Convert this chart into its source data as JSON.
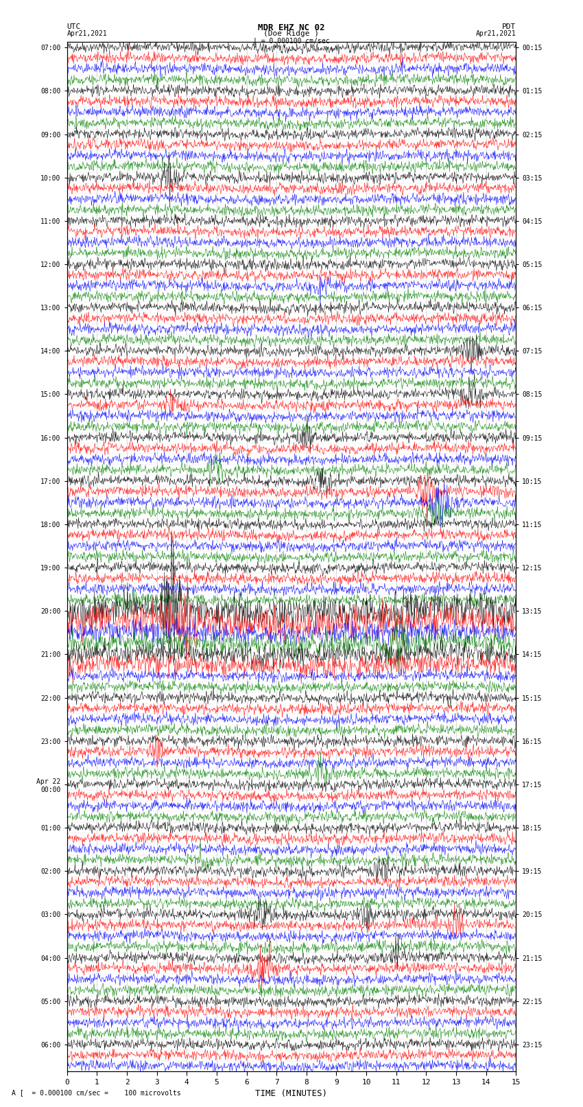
{
  "title_line1": "MDR EHZ NC 02",
  "title_line2": "(Doe Ridge )",
  "scale_label": "| = 0.000100 cm/sec",
  "left_header": "UTC",
  "left_date": "Apr21,2021",
  "right_header": "PDT",
  "right_date": "Apr21,2021",
  "xlabel": "TIME (MINUTES)",
  "bottom_note": "A [  = 0.000100 cm/sec =    100 microvolts",
  "utc_times": [
    "07:00",
    "",
    "",
    "",
    "08:00",
    "",
    "",
    "",
    "09:00",
    "",
    "",
    "",
    "10:00",
    "",
    "",
    "",
    "11:00",
    "",
    "",
    "",
    "12:00",
    "",
    "",
    "",
    "13:00",
    "",
    "",
    "",
    "14:00",
    "",
    "",
    "",
    "15:00",
    "",
    "",
    "",
    "16:00",
    "",
    "",
    "",
    "17:00",
    "",
    "",
    "",
    "18:00",
    "",
    "",
    "",
    "19:00",
    "",
    "",
    "",
    "20:00",
    "",
    "",
    "",
    "21:00",
    "",
    "",
    "",
    "22:00",
    "",
    "",
    "",
    "23:00",
    "",
    "",
    "",
    "Apr 22\n00:00",
    "",
    "",
    "",
    "01:00",
    "",
    "",
    "",
    "02:00",
    "",
    "",
    "",
    "03:00",
    "",
    "",
    "",
    "04:00",
    "",
    "",
    "",
    "05:00",
    "",
    "",
    "",
    "06:00",
    "",
    ""
  ],
  "pdt_times": [
    "00:15",
    "",
    "",
    "",
    "01:15",
    "",
    "",
    "",
    "02:15",
    "",
    "",
    "",
    "03:15",
    "",
    "",
    "",
    "04:15",
    "",
    "",
    "",
    "05:15",
    "",
    "",
    "",
    "06:15",
    "",
    "",
    "",
    "07:15",
    "",
    "",
    "",
    "08:15",
    "",
    "",
    "",
    "09:15",
    "",
    "",
    "",
    "10:15",
    "",
    "",
    "",
    "11:15",
    "",
    "",
    "",
    "12:15",
    "",
    "",
    "",
    "13:15",
    "",
    "",
    "",
    "14:15",
    "",
    "",
    "",
    "15:15",
    "",
    "",
    "",
    "16:15",
    "",
    "",
    "",
    "17:15",
    "",
    "",
    "",
    "18:15",
    "",
    "",
    "",
    "19:15",
    "",
    "",
    "",
    "20:15",
    "",
    "",
    "",
    "21:15",
    "",
    "",
    "",
    "22:15",
    "",
    "",
    "",
    "23:15",
    "",
    ""
  ],
  "trace_colors": [
    "black",
    "red",
    "blue",
    "green"
  ],
  "n_rows": 95,
  "minutes": 15,
  "background_color": "white",
  "grid_color": "#aaaaaa",
  "fig_width": 8.5,
  "fig_height": 16.13,
  "dpi": 100
}
